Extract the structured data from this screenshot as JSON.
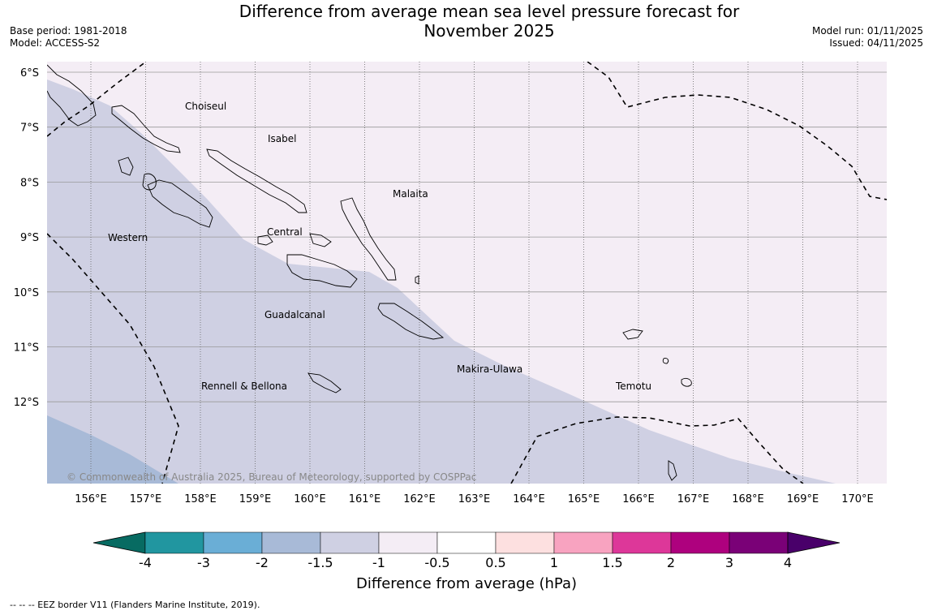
{
  "title": {
    "line1": "Difference from average mean sea level pressure forecast for",
    "line2": "November 2025"
  },
  "meta": {
    "base_period": "Base period: 1981-2018",
    "model": "Model: ACCESS-S2",
    "model_run": "Model run: 01/11/2025",
    "issued": "Issued: 04/11/2025"
  },
  "map": {
    "lat_labels": [
      "6°S",
      "7°S",
      "8°S",
      "9°S",
      "10°S",
      "11°S",
      "12°S"
    ],
    "lat_values": [
      -6,
      -7,
      -8,
      -9,
      -10,
      -11,
      -12
    ],
    "lon_labels": [
      "156°E",
      "157°E",
      "158°E",
      "159°E",
      "160°E",
      "161°E",
      "162°E",
      "163°E",
      "164°E",
      "165°E",
      "166°E",
      "167°E",
      "168°E",
      "169°E",
      "170°E"
    ],
    "lon_values": [
      156,
      157,
      158,
      159,
      160,
      161,
      162,
      163,
      164,
      165,
      166,
      167,
      168,
      169,
      170
    ],
    "provinces": [
      "Choiseul",
      "Isabel",
      "Malaita",
      "Central",
      "Western",
      "Guadalcanal",
      "Makira-Ulawa",
      "Temotu",
      "Rennell & Bellona"
    ],
    "copyright": "© Commonwealth of Australia 2025, Bureau of Meteorology, supported by COSPPac",
    "region_colors": {
      "light": "#f4edf5",
      "mid": "#cfd0e3",
      "dark": "#a8bad7"
    }
  },
  "colorbar": {
    "labels": [
      "-4",
      "-3",
      "-2",
      "-1.5",
      "-1",
      "-0.5",
      "0.5",
      "1",
      "1.5",
      "2",
      "3",
      "4"
    ],
    "colors": [
      "#076b62",
      "#2196a0",
      "#6aaed6",
      "#a8bad7",
      "#cfd0e3",
      "#f4edf5",
      "#ffffff",
      "#fde0e0",
      "#f8a3c0",
      "#dd3799",
      "#ae017e",
      "#7a0177",
      "#49006a"
    ],
    "axis_label": "Difference from average (hPa)"
  },
  "footer": "--  --  -- EEZ border V11 (Flanders Marine Institute, 2019)."
}
